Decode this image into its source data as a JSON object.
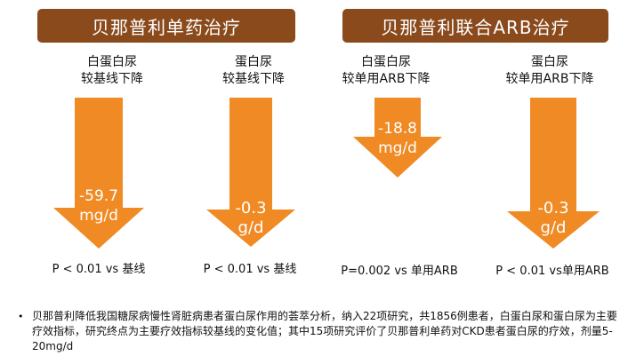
{
  "headers": {
    "mono": "贝那普利单药治疗",
    "combo": "贝那普利联合ARB治疗"
  },
  "panels": [
    {
      "label_line1": "白蛋白尿",
      "label_line2": "较基线下降",
      "value_line1": "-59.7",
      "value_line2": "mg/d",
      "p_text": "P < 0.01 vs 基线",
      "color": "#f08a24"
    },
    {
      "label_line1": "蛋白尿",
      "label_line2": "较基线下降",
      "value_line1": "-0.3",
      "value_line2": "g/d",
      "p_text": "P < 0.01 vs 基线",
      "color": "#f08a24"
    },
    {
      "label_line1": "白蛋白尿",
      "label_line2": "较单用ARB下降",
      "value_line1": "-18.8",
      "value_line2": "mg/d",
      "p_text": "P=0.002 vs 单用ARB",
      "color": "#f08a24"
    },
    {
      "label_line1": "蛋白尿",
      "label_line2": "较单用ARB下降",
      "value_line1": "-0.3",
      "value_line2": "g/d",
      "p_text": "P < 0.01 vs单用ARB",
      "color": "#f08a24"
    }
  ],
  "note": {
    "bullet": "•",
    "text": "贝那普利降低我国糖尿病慢性肾脏病患者蛋白尿作用的荟萃分析，纳入22项研究，共1856例患者，白蛋白尿和蛋白尿为主要疗效指标，研究终点为主要疗效指标较基线的变化值；其中15项研究评价了贝那普利单药对CKD患者蛋白尿的疗效，剂量5-20mg/d"
  }
}
